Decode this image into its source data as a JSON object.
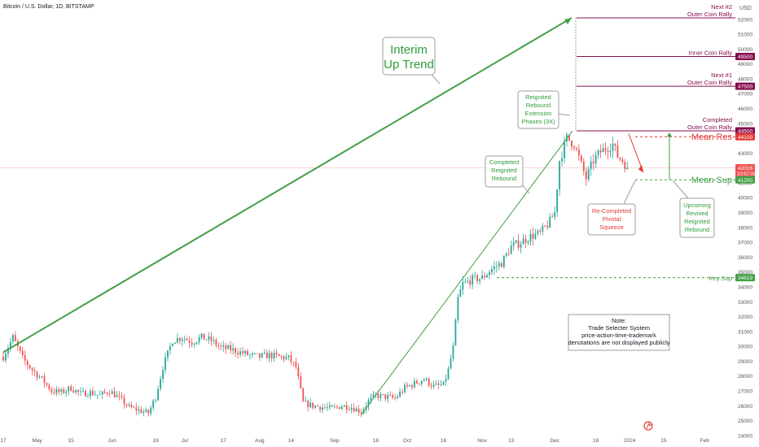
{
  "header": {
    "title": "Bitcoin / U.S. Dollar, 1D, BITSTAMP"
  },
  "axis": {
    "currency": "USD",
    "y_ticks": [
      24000,
      25000,
      26000,
      27000,
      28000,
      29000,
      30000,
      31000,
      32000,
      33000,
      34000,
      35000,
      36000,
      37000,
      38000,
      39000,
      40000,
      41000,
      42000,
      43000,
      44000,
      45000,
      46000,
      47000,
      48000,
      49000,
      50000,
      51000,
      52000
    ],
    "x_ticks": [
      {
        "label": "17",
        "day": 0
      },
      {
        "label": "May",
        "day": 14
      },
      {
        "label": "15",
        "day": 28
      },
      {
        "label": "Jun",
        "day": 45
      },
      {
        "label": "19",
        "day": 63
      },
      {
        "label": "Jul",
        "day": 75
      },
      {
        "label": "17",
        "day": 91
      },
      {
        "label": "Aug",
        "day": 106
      },
      {
        "label": "14",
        "day": 119
      },
      {
        "label": "Sep",
        "day": 137
      },
      {
        "label": "18",
        "day": 154
      },
      {
        "label": "Oct",
        "day": 167
      },
      {
        "label": "16",
        "day": 182
      },
      {
        "label": "Nov",
        "day": 198
      },
      {
        "label": "13",
        "day": 210
      },
      {
        "label": "Dec",
        "day": 228
      },
      {
        "label": "18",
        "day": 245
      },
      {
        "label": "2024",
        "day": 259
      },
      {
        "label": "15",
        "day": 273
      },
      {
        "label": "Feb",
        "day": 290
      }
    ]
  },
  "price_tags": [
    {
      "text": "49500",
      "value": 49500,
      "color": "#880e4f"
    },
    {
      "text": "47500",
      "value": 47500,
      "color": "#880e4f"
    },
    {
      "text": "44500",
      "value": 44500,
      "color": "#880e4f"
    },
    {
      "text": "44100",
      "value": 44100,
      "color": "#e53935"
    },
    {
      "text": "42016",
      "value": 42016,
      "color": "#ef5350",
      "sub": "10:57:09"
    },
    {
      "text": "41200",
      "value": 41200,
      "color": "#43a047"
    },
    {
      "text": "34619",
      "value": 34619,
      "color": "#43a047"
    }
  ],
  "levels": [
    {
      "name": "next2",
      "value": 52100,
      "color": "#880e4f",
      "label1": "Next #2",
      "label2": "Outer Coin Rally"
    },
    {
      "name": "inner",
      "value": 49500,
      "color": "#880e4f",
      "label1": "",
      "label2": "Inner Coin Rally"
    },
    {
      "name": "next1",
      "value": 47500,
      "color": "#880e4f",
      "label1": "Next #1",
      "label2": "Outer Coin Rally"
    },
    {
      "name": "completed",
      "value": 44500,
      "color": "#880e4f",
      "label1": "Completed",
      "label2": "Outer Coin Rally"
    }
  ],
  "dashed_levels": [
    {
      "name": "mean-res",
      "value": 44100,
      "color": "#e53935",
      "label": "Mean Res"
    },
    {
      "name": "mean-sup",
      "value": 41200,
      "color": "#43a047",
      "label": "Mean Sup"
    },
    {
      "name": "key-sup",
      "value": 34619,
      "color": "#43a047",
      "label": "Key Sup"
    }
  ],
  "annotations": {
    "interim1": "Interim",
    "interim2": "Up Trend",
    "reignited": [
      "Reignited",
      "Rebound",
      "Extension",
      "Phases (3X)"
    ],
    "completed_reignited": [
      "Completed",
      "Reignited",
      "Rebound"
    ],
    "re_completed": [
      "Re-Completed",
      "Pivotal",
      "Squeeze"
    ],
    "upcoming": [
      "Upcoming",
      "Revived",
      "Reignited",
      "Rebound"
    ],
    "note": [
      "Note:",
      "Trade Selecter System",
      "price-action-time-trademark",
      "denotations are not displayed publicly"
    ]
  },
  "chart_data": {
    "type": "candlestick",
    "title": "Bitcoin / U.S. Dollar, 1D, BITSTAMP",
    "y_unit": "USD",
    "ylim": [
      23500,
      53300
    ],
    "grid": false,
    "anchors": [
      [
        0,
        29300
      ],
      [
        4,
        30600
      ],
      [
        8,
        29200
      ],
      [
        12,
        28400
      ],
      [
        16,
        27800
      ],
      [
        20,
        27000
      ],
      [
        24,
        26900
      ],
      [
        28,
        27200
      ],
      [
        32,
        26800
      ],
      [
        36,
        26900
      ],
      [
        40,
        26700
      ],
      [
        44,
        27000
      ],
      [
        48,
        26500
      ],
      [
        52,
        25900
      ],
      [
        56,
        25700
      ],
      [
        60,
        25500
      ],
      [
        63,
        26600
      ],
      [
        66,
        28600
      ],
      [
        70,
        30400
      ],
      [
        74,
        30600
      ],
      [
        78,
        30300
      ],
      [
        82,
        30600
      ],
      [
        86,
        30400
      ],
      [
        90,
        29900
      ],
      [
        94,
        29800
      ],
      [
        98,
        29600
      ],
      [
        102,
        29400
      ],
      [
        106,
        29300
      ],
      [
        110,
        29400
      ],
      [
        114,
        29300
      ],
      [
        118,
        29200
      ],
      [
        121,
        28600
      ],
      [
        124,
        26200
      ],
      [
        128,
        26000
      ],
      [
        132,
        25900
      ],
      [
        136,
        25800
      ],
      [
        140,
        26000
      ],
      [
        144,
        25900
      ],
      [
        148,
        25600
      ],
      [
        151,
        26300
      ],
      [
        154,
        26700
      ],
      [
        158,
        26600
      ],
      [
        162,
        26500
      ],
      [
        166,
        27200
      ],
      [
        170,
        27500
      ],
      [
        174,
        27800
      ],
      [
        178,
        27300
      ],
      [
        182,
        27400
      ],
      [
        184,
        28400
      ],
      [
        186,
        29900
      ],
      [
        188,
        33200
      ],
      [
        190,
        34200
      ],
      [
        194,
        34500
      ],
      [
        198,
        34600
      ],
      [
        202,
        35200
      ],
      [
        206,
        35600
      ],
      [
        210,
        36700
      ],
      [
        214,
        37000
      ],
      [
        218,
        37400
      ],
      [
        222,
        37600
      ],
      [
        226,
        38400
      ],
      [
        228,
        39000
      ],
      [
        230,
        42500
      ],
      [
        233,
        44000
      ],
      [
        236,
        43600
      ],
      [
        239,
        42200
      ],
      [
        241,
        41300
      ],
      [
        244,
        42500
      ],
      [
        247,
        43100
      ],
      [
        250,
        43400
      ],
      [
        252,
        43600
      ],
      [
        254,
        42800
      ],
      [
        256,
        42500
      ],
      [
        258,
        42016
      ]
    ]
  }
}
